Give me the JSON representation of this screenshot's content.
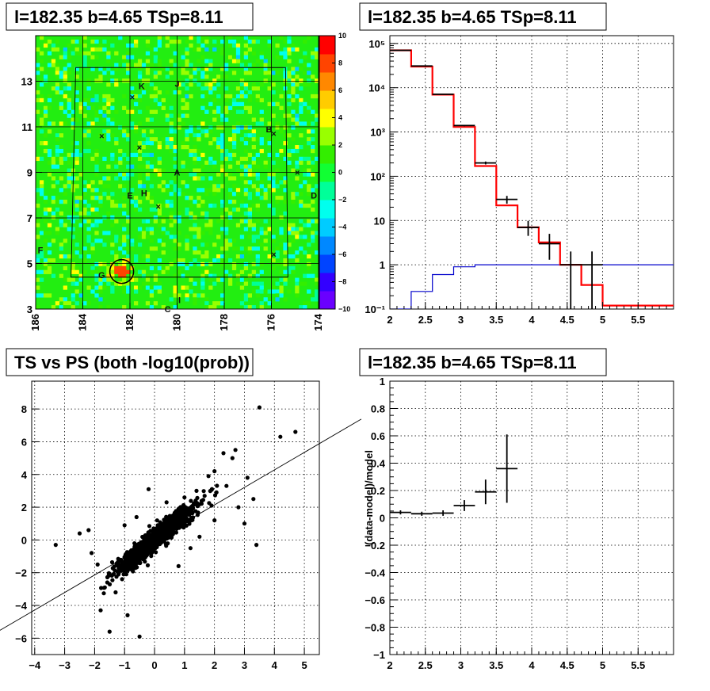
{
  "chart_data": [
    {
      "type": "heatmap",
      "title": "l=182.35 b=4.65 TSp=8.11",
      "xlim": [
        186,
        174
      ],
      "ylim": [
        3,
        15
      ],
      "x_ticks": [
        "186",
        "184",
        "182",
        "180",
        "178",
        "176",
        "174"
      ],
      "y_ticks": [
        "3",
        "5",
        "7",
        "9",
        "11",
        "13"
      ],
      "colorbar": {
        "range": [
          -10,
          10
        ],
        "ticks": [
          "10",
          "8",
          "6",
          "4",
          "2",
          "0",
          "−2",
          "−4",
          "−6",
          "−8",
          "−10"
        ]
      },
      "source_circle": {
        "l": 182.35,
        "b": 4.65
      },
      "markers": [
        {
          "label": "K",
          "l": 181.5,
          "b": 12.8
        },
        {
          "label": "J",
          "l": 180.0,
          "b": 12.9
        },
        {
          "label": "B",
          "l": 176.1,
          "b": 10.9
        },
        {
          "label": "A",
          "l": 180.0,
          "b": 9.0
        },
        {
          "label": "D",
          "l": 174.2,
          "b": 8.0
        },
        {
          "label": "E",
          "l": 182.0,
          "b": 8.0
        },
        {
          "label": "H",
          "l": 181.4,
          "b": 8.1
        },
        {
          "label": "F",
          "l": 185.8,
          "b": 5.6
        },
        {
          "label": "G",
          "l": 183.2,
          "b": 4.5
        },
        {
          "label": "I",
          "l": 179.9,
          "b": 3.4
        },
        {
          "label": "C",
          "l": 180.4,
          "b": 3.0
        }
      ],
      "crosses": [
        {
          "l": 181.9,
          "b": 12.3
        },
        {
          "l": 183.2,
          "b": 10.6
        },
        {
          "l": 181.6,
          "b": 10.1
        },
        {
          "l": 180.8,
          "b": 7.5
        },
        {
          "l": 175.9,
          "b": 10.7
        },
        {
          "l": 174.9,
          "b": 9.0
        },
        {
          "l": 175.9,
          "b": 5.4
        }
      ]
    },
    {
      "type": "line",
      "title": "l=182.35 b=4.65 TSp=8.11",
      "yscale": "log",
      "xlim": [
        2,
        6
      ],
      "ylim": [
        0.1,
        150000
      ],
      "x_ticks": [
        "2",
        "2.5",
        "3",
        "3.5",
        "4",
        "4.5",
        "5",
        "5.5"
      ],
      "y_ticks": [
        "10⁵",
        "10⁴",
        "10³",
        "10²",
        "10",
        "1",
        "10⁻¹"
      ],
      "bin_edges": [
        2.0,
        2.3,
        2.6,
        2.9,
        3.2,
        3.5,
        3.8,
        4.1,
        4.4,
        4.7,
        5.0,
        6.0
      ],
      "series": [
        {
          "name": "",
          "style": "step",
          "color": "#ff0000",
          "values": [
            70000,
            30000,
            7000,
            1300,
            170,
            22,
            7,
            3.2,
            1.0,
            0.35,
            0.12
          ]
        },
        {
          "name": "",
          "style": "step",
          "color": "#0000cc",
          "values": [
            0.09,
            0.25,
            0.6,
            0.9,
            1.0,
            1.0,
            1.0,
            1.0,
            1.0,
            1.0,
            1.0
          ]
        },
        {
          "name": "",
          "style": "errorbars",
          "color": "#000000",
          "points": [
            {
              "x": 2.15,
              "y": 70000,
              "xerr": 0.15,
              "lo": 69500,
              "hi": 70500
            },
            {
              "x": 2.45,
              "y": 31000,
              "xerr": 0.15,
              "lo": 30800,
              "hi": 31200
            },
            {
              "x": 2.75,
              "y": 7100,
              "xerr": 0.15,
              "lo": 7000,
              "hi": 7200
            },
            {
              "x": 3.05,
              "y": 1400,
              "xerr": 0.15,
              "lo": 1350,
              "hi": 1450
            },
            {
              "x": 3.35,
              "y": 200,
              "xerr": 0.15,
              "lo": 185,
              "hi": 215
            },
            {
              "x": 3.65,
              "y": 30,
              "xerr": 0.15,
              "lo": 24,
              "hi": 36
            },
            {
              "x": 3.95,
              "y": 7,
              "xerr": 0.15,
              "lo": 4.5,
              "hi": 9.8
            },
            {
              "x": 4.25,
              "y": 3,
              "xerr": 0.15,
              "lo": 1.3,
              "hi": 5.0
            },
            {
              "x": 4.55,
              "y": 1,
              "xerr": 0.15,
              "lo": 0.1,
              "hi": 2.0
            },
            {
              "x": 4.85,
              "y": 1,
              "xerr": 0.15,
              "lo": 0.1,
              "hi": 2.0
            }
          ]
        }
      ]
    },
    {
      "type": "scatter",
      "title": "TS vs PS (both -log10(prob))",
      "xlim": [
        -4.1,
        5.5
      ],
      "ylim": [
        -7.0,
        9.7
      ],
      "x_ticks": [
        "−4",
        "−3",
        "−2",
        "−1",
        "0",
        "1",
        "2",
        "3",
        "4",
        "5"
      ],
      "y_ticks": [
        "−6",
        "−4",
        "−2",
        "0",
        "2",
        "4",
        "6",
        "8"
      ],
      "fit_line": {
        "slope": 1.07,
        "intercept": 0.0
      },
      "points": [
        [
          3.5,
          8.1
        ],
        [
          4.7,
          6.6
        ],
        [
          4.2,
          6.3
        ],
        [
          3.4,
          -0.3
        ],
        [
          -3.3,
          -0.3
        ],
        [
          -2.5,
          0.4
        ],
        [
          -2.2,
          0.6
        ],
        [
          -1.5,
          -5.6
        ],
        [
          -0.5,
          -5.9
        ],
        [
          -1.8,
          -4.3
        ],
        [
          2.6,
          5.0
        ],
        [
          2.0,
          4.2
        ],
        [
          3.1,
          3.8
        ],
        [
          3.3,
          2.5
        ],
        [
          2.8,
          2.0
        ],
        [
          3.0,
          1.0
        ],
        [
          1.8,
          3.9
        ],
        [
          2.3,
          5.3
        ],
        [
          2.7,
          5.5
        ],
        [
          1.4,
          3.0
        ],
        [
          1.0,
          2.6
        ],
        [
          -0.2,
          3.1
        ],
        [
          1.2,
          -0.5
        ],
        [
          1.5,
          0.2
        ],
        [
          2.0,
          1.2
        ],
        [
          -1.9,
          -1.5
        ],
        [
          -2.1,
          -0.8
        ],
        [
          -1.3,
          -3.2
        ],
        [
          -0.9,
          -4.6
        ],
        [
          0.8,
          -1.6
        ],
        [
          1.9,
          2.1
        ],
        [
          2.4,
          3.3
        ],
        [
          0.4,
          2.3
        ],
        [
          -0.6,
          1.4
        ],
        [
          -1.0,
          0.9
        ]
      ]
    },
    {
      "type": "line",
      "title": "l=182.35 b=4.65 TSp=8.11",
      "ylabel": "(data-model)/model",
      "xlim": [
        2,
        6
      ],
      "ylim": [
        -1,
        1
      ],
      "x_ticks": [
        "2",
        "2.5",
        "3",
        "3.5",
        "4",
        "4.5",
        "5",
        "5.5"
      ],
      "y_ticks": [
        "1",
        "0.8",
        "0.6",
        "0.4",
        "0.2",
        "0",
        "−0.2",
        "−0.4",
        "−0.6",
        "−0.8",
        "−1"
      ],
      "points": [
        {
          "x": 2.15,
          "y": 0.04,
          "xerr": 0.15,
          "lo": 0.025,
          "hi": 0.055
        },
        {
          "x": 2.45,
          "y": 0.03,
          "xerr": 0.15,
          "lo": 0.015,
          "hi": 0.045
        },
        {
          "x": 2.75,
          "y": 0.035,
          "xerr": 0.15,
          "lo": 0.015,
          "hi": 0.055
        },
        {
          "x": 3.05,
          "y": 0.09,
          "xerr": 0.15,
          "lo": 0.05,
          "hi": 0.13
        },
        {
          "x": 3.35,
          "y": 0.19,
          "xerr": 0.15,
          "lo": 0.1,
          "hi": 0.28
        },
        {
          "x": 3.65,
          "y": 0.36,
          "xerr": 0.15,
          "lo": 0.11,
          "hi": 0.61
        }
      ]
    }
  ]
}
